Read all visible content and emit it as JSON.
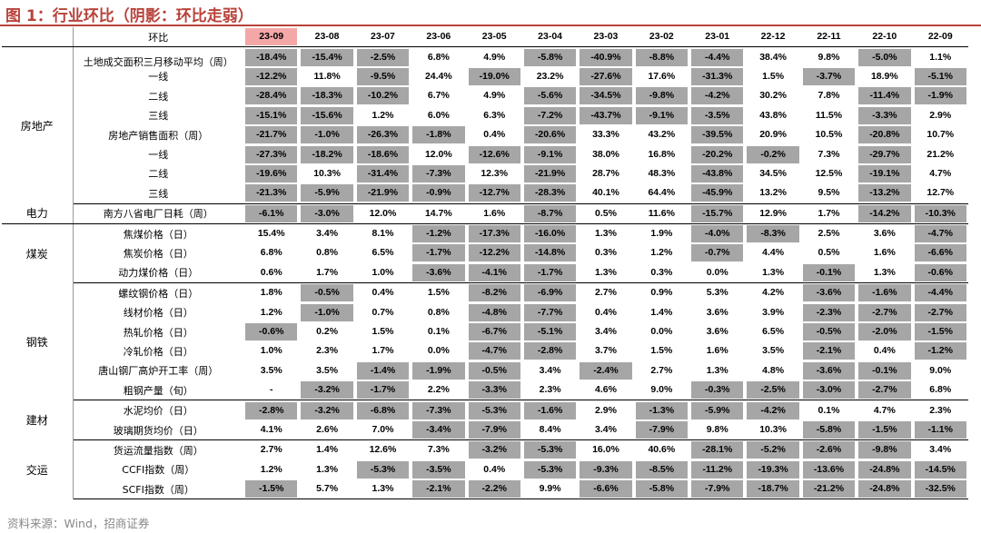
{
  "title": "图 1：行业环比（阴影：环比走弱）",
  "header": {
    "label": "环比",
    "columns": [
      "23-09",
      "23-08",
      "23-07",
      "23-06",
      "23-05",
      "23-04",
      "23-03",
      "23-02",
      "23-01",
      "22-12",
      "22-11",
      "22-10",
      "22-09"
    ]
  },
  "groups": [
    {
      "category": "房地产",
      "rows": [
        {
          "indicator": "土地成交面积三月移动平均（周）",
          "values": [
            "-18.4%",
            "-15.4%",
            "-2.5%",
            "6.8%",
            "4.9%",
            "-5.8%",
            "-40.9%",
            "-8.8%",
            "-4.4%",
            "38.4%",
            "9.8%",
            "-5.0%",
            "1.1%"
          ]
        },
        {
          "indicator": "一线",
          "values": [
            "-12.2%",
            "11.8%",
            "-9.5%",
            "24.4%",
            "-19.0%",
            "23.2%",
            "-27.6%",
            "17.6%",
            "-31.3%",
            "1.5%",
            "-3.7%",
            "18.9%",
            "-5.1%"
          ]
        },
        {
          "indicator": "二线",
          "values": [
            "-28.4%",
            "-18.3%",
            "-10.2%",
            "6.7%",
            "4.9%",
            "-5.6%",
            "-34.5%",
            "-9.8%",
            "-4.2%",
            "30.2%",
            "7.8%",
            "-11.4%",
            "-1.9%"
          ]
        },
        {
          "indicator": "三线",
          "values": [
            "-15.1%",
            "-15.6%",
            "1.2%",
            "6.0%",
            "6.3%",
            "-7.2%",
            "-43.7%",
            "-9.1%",
            "-3.5%",
            "43.8%",
            "11.5%",
            "-3.3%",
            "2.9%"
          ]
        },
        {
          "indicator": "房地产销售面积（周）",
          "values": [
            "-21.7%",
            "-1.0%",
            "-26.3%",
            "-1.8%",
            "0.4%",
            "-20.6%",
            "33.3%",
            "43.2%",
            "-39.5%",
            "20.9%",
            "10.5%",
            "-20.8%",
            "10.7%"
          ]
        },
        {
          "indicator": "一线",
          "values": [
            "-27.3%",
            "-18.2%",
            "-18.6%",
            "12.0%",
            "-12.6%",
            "-9.1%",
            "38.0%",
            "16.8%",
            "-20.2%",
            "-0.2%",
            "7.3%",
            "-29.7%",
            "21.2%"
          ]
        },
        {
          "indicator": "二线",
          "values": [
            "-19.6%",
            "10.3%",
            "-31.4%",
            "-7.3%",
            "12.3%",
            "-21.9%",
            "28.7%",
            "48.3%",
            "-43.8%",
            "34.5%",
            "12.5%",
            "-19.1%",
            "4.7%"
          ]
        },
        {
          "indicator": "三线",
          "values": [
            "-21.3%",
            "-5.9%",
            "-21.9%",
            "-0.9%",
            "-12.7%",
            "-28.3%",
            "40.1%",
            "64.4%",
            "-45.9%",
            "13.2%",
            "9.5%",
            "-13.2%",
            "12.7%"
          ]
        }
      ]
    },
    {
      "category": "电力",
      "rows": [
        {
          "indicator": "南方八省电厂日耗（周）",
          "values": [
            "-6.1%",
            "-3.0%",
            "12.0%",
            "14.7%",
            "1.6%",
            "-8.7%",
            "0.5%",
            "11.6%",
            "-15.7%",
            "12.9%",
            "1.7%",
            "-14.2%",
            "-10.3%"
          ]
        }
      ]
    },
    {
      "category": "煤炭",
      "rows": [
        {
          "indicator": "焦煤价格（日）",
          "values": [
            "15.4%",
            "3.4%",
            "8.1%",
            "-1.2%",
            "-17.3%",
            "-16.0%",
            "1.3%",
            "1.9%",
            "-4.0%",
            "-8.3%",
            "2.5%",
            "3.6%",
            "-4.7%"
          ]
        },
        {
          "indicator": "焦炭价格（日）",
          "values": [
            "6.8%",
            "0.8%",
            "6.5%",
            "-1.7%",
            "-12.2%",
            "-14.8%",
            "0.3%",
            "1.2%",
            "-0.7%",
            "4.4%",
            "0.5%",
            "1.6%",
            "-6.6%"
          ]
        },
        {
          "indicator": "动力煤价格（日）",
          "values": [
            "0.6%",
            "1.7%",
            "1.0%",
            "-3.6%",
            "-4.1%",
            "-1.7%",
            "1.3%",
            "0.3%",
            "0.0%",
            "1.3%",
            "-0.1%",
            "1.3%",
            "-0.6%"
          ]
        }
      ]
    },
    {
      "category": "钢铁",
      "rows": [
        {
          "indicator": "螺纹钢价格（日）",
          "values": [
            "1.8%",
            "-0.5%",
            "0.4%",
            "1.5%",
            "-8.2%",
            "-6.9%",
            "2.7%",
            "0.9%",
            "5.3%",
            "4.2%",
            "-3.6%",
            "-1.6%",
            "-4.4%"
          ]
        },
        {
          "indicator": "线材价格（日）",
          "values": [
            "1.2%",
            "-1.0%",
            "0.7%",
            "0.8%",
            "-4.8%",
            "-7.7%",
            "0.4%",
            "1.4%",
            "3.6%",
            "3.9%",
            "-2.3%",
            "-2.7%",
            "-2.7%"
          ]
        },
        {
          "indicator": "热轧价格（日）",
          "values": [
            "-0.6%",
            "0.2%",
            "1.5%",
            "0.1%",
            "-6.7%",
            "-5.1%",
            "3.4%",
            "0.0%",
            "3.6%",
            "6.5%",
            "-0.5%",
            "-2.0%",
            "-1.5%"
          ]
        },
        {
          "indicator": "冷轧价格（日）",
          "values": [
            "1.0%",
            "2.3%",
            "1.7%",
            "0.0%",
            "-4.7%",
            "-2.8%",
            "3.7%",
            "1.5%",
            "1.6%",
            "3.5%",
            "-2.1%",
            "0.4%",
            "-1.2%"
          ]
        },
        {
          "indicator": "唐山钢厂高炉开工率（周）",
          "values": [
            "3.5%",
            "3.5%",
            "-1.4%",
            "-1.9%",
            "-0.5%",
            "3.4%",
            "-2.4%",
            "2.7%",
            "1.3%",
            "4.8%",
            "-3.6%",
            "-0.1%",
            "9.0%"
          ]
        },
        {
          "indicator": "粗钢产量（旬）",
          "values": [
            "-",
            "-3.2%",
            "-1.7%",
            "2.2%",
            "-3.3%",
            "2.3%",
            "4.6%",
            "9.0%",
            "-0.3%",
            "-2.5%",
            "-3.0%",
            "-2.7%",
            "6.8%"
          ]
        }
      ]
    },
    {
      "category": "建材",
      "rows": [
        {
          "indicator": "水泥均价（日）",
          "values": [
            "-2.8%",
            "-3.2%",
            "-6.8%",
            "-7.3%",
            "-5.3%",
            "-1.6%",
            "2.9%",
            "-1.3%",
            "-5.9%",
            "-4.2%",
            "0.1%",
            "4.7%",
            "2.3%"
          ]
        },
        {
          "indicator": "玻璃期货均价（日）",
          "values": [
            "4.1%",
            "2.6%",
            "7.0%",
            "-3.4%",
            "-7.9%",
            "8.4%",
            "3.4%",
            "-7.9%",
            "9.8%",
            "10.3%",
            "-5.8%",
            "-1.5%",
            "-1.1%"
          ]
        }
      ]
    },
    {
      "category": "交运",
      "rows": [
        {
          "indicator": "货运流量指数（周）",
          "values": [
            "2.7%",
            "1.4%",
            "12.6%",
            "7.3%",
            "-3.2%",
            "-5.3%",
            "16.0%",
            "40.6%",
            "-28.1%",
            "-5.2%",
            "-2.6%",
            "-9.8%",
            "3.4%"
          ]
        },
        {
          "indicator": "CCFI指数（周）",
          "values": [
            "1.2%",
            "1.3%",
            "-5.3%",
            "-3.5%",
            "0.4%",
            "-5.3%",
            "-9.3%",
            "-8.5%",
            "-11.2%",
            "-19.3%",
            "-13.6%",
            "-24.8%",
            "-14.5%"
          ]
        },
        {
          "indicator": "SCFI指数（周）",
          "values": [
            "-1.5%",
            "5.7%",
            "1.3%",
            "-2.1%",
            "-2.2%",
            "9.9%",
            "-6.6%",
            "-5.8%",
            "-7.9%",
            "-18.7%",
            "-21.2%",
            "-24.8%",
            "-32.5%"
          ]
        }
      ]
    }
  ],
  "source": "资料来源：Wind，招商证券",
  "colors": {
    "title": "#b8423a",
    "shade": "#a6a6a6",
    "header_highlight": "#f4a7a7"
  }
}
